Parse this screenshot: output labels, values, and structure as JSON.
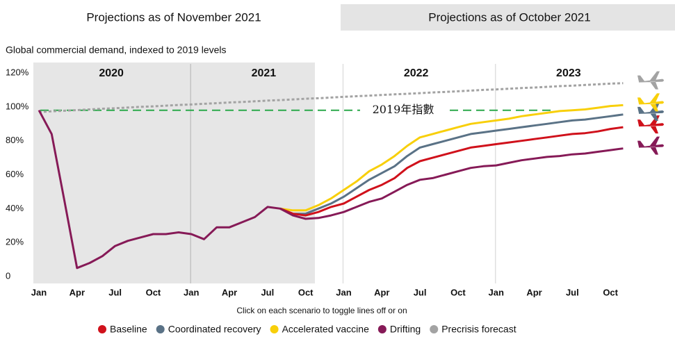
{
  "tabs": [
    "Projections as of November 2021",
    "Projections as of October 2021"
  ],
  "chart_data": {
    "type": "line",
    "subtitle": "Global commercial demand, indexed to 2019 levels",
    "categories": [
      "Jan",
      null,
      null,
      "Apr",
      null,
      null,
      "Jul",
      null,
      null,
      "Oct",
      null,
      null,
      "Jan",
      null,
      null,
      "Apr",
      null,
      null,
      "Jul",
      null,
      null,
      "Oct",
      null,
      null,
      "Jan",
      null,
      null,
      "Apr",
      null,
      null,
      "Jul",
      null,
      null,
      "Oct",
      null,
      null,
      "Jan",
      null,
      null,
      "Apr",
      null,
      null,
      "Jul",
      null,
      null,
      "Oct",
      null
    ],
    "year_labels": [
      "2020",
      "2021",
      "2022",
      "2023"
    ],
    "ylim": [
      0,
      120
    ],
    "yticks": [
      0,
      {
        "value": 20,
        "label": "20%"
      },
      {
        "value": 40,
        "label": "40%"
      },
      {
        "value": 60,
        "label": "60%"
      },
      {
        "value": 80,
        "label": "80%"
      },
      {
        "value": 100,
        "label": "100%"
      },
      {
        "value": 120,
        "label": "120%"
      }
    ],
    "reference_line": {
      "value": 98,
      "label": "2019年指數",
      "color": "#2aa84a"
    },
    "note": "Click on each scenario to toggle lines off or on",
    "series": [
      {
        "name": "Baseline",
        "color": "#d0111b",
        "values": [
          null,
          null,
          null,
          null,
          null,
          null,
          null,
          null,
          null,
          null,
          null,
          null,
          null,
          null,
          null,
          null,
          null,
          null,
          null,
          40,
          37,
          36,
          38,
          41,
          43,
          47,
          51,
          54,
          58,
          64,
          68,
          70,
          72,
          74,
          76,
          77,
          78,
          79,
          80,
          81,
          82,
          83,
          84,
          84.5,
          85.5,
          87,
          88
        ]
      },
      {
        "name": "Coordinated recovery",
        "color": "#5a7286",
        "values": [
          null,
          null,
          null,
          null,
          null,
          null,
          null,
          null,
          null,
          null,
          null,
          null,
          null,
          null,
          null,
          null,
          null,
          null,
          null,
          40,
          37,
          37,
          40,
          43,
          47,
          52,
          57,
          61,
          65,
          71,
          76,
          78,
          80,
          82,
          84,
          85,
          86,
          87,
          88,
          89,
          90,
          91,
          92,
          92.5,
          93.5,
          94.5,
          95.5
        ]
      },
      {
        "name": "Accelerated vaccine",
        "color": "#f8cf0a",
        "values": [
          null,
          null,
          null,
          null,
          null,
          null,
          null,
          null,
          null,
          null,
          null,
          null,
          null,
          null,
          null,
          null,
          null,
          null,
          null,
          40,
          39,
          39,
          42,
          46,
          51,
          56,
          62,
          66,
          71,
          77,
          82,
          84,
          86,
          88,
          90,
          91,
          92,
          93,
          94.5,
          95.5,
          96.5,
          97.5,
          98,
          98.5,
          99.5,
          100.5,
          101
        ]
      },
      {
        "name": "Drifting",
        "color": "#861a57",
        "values": [
          98,
          84,
          45,
          5,
          8,
          12,
          18,
          21,
          23,
          25,
          25,
          26,
          25,
          22,
          29,
          29,
          32,
          35,
          41,
          40,
          36,
          34,
          34.5,
          36,
          38,
          41,
          44,
          46,
          50,
          54,
          57,
          58,
          60,
          62,
          64,
          65,
          65.5,
          67,
          68.5,
          69.5,
          70.5,
          71,
          72,
          72.5,
          73.5,
          74.5,
          75.5
        ]
      },
      {
        "name": "Precrisis forecast",
        "color": "#a3a3a3",
        "dashed": true,
        "values": [
          97.0,
          97.4,
          97.7,
          98.1,
          98.5,
          98.9,
          99.2,
          99.6,
          100.0,
          100.3,
          100.7,
          101.1,
          101.4,
          101.8,
          102.2,
          102.6,
          102.9,
          103.3,
          103.7,
          104.0,
          104.4,
          104.8,
          105.1,
          105.5,
          105.9,
          106.3,
          106.6,
          107.0,
          107.4,
          107.7,
          108.1,
          108.5,
          108.8,
          109.2,
          109.6,
          110.0,
          110.3,
          110.7,
          111.1,
          111.4,
          111.8,
          112.2,
          112.5,
          112.9,
          113.3,
          113.7,
          114.0
        ]
      }
    ]
  }
}
